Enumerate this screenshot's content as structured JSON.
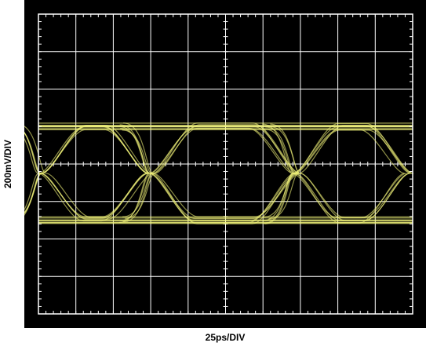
{
  "chart_data": {
    "type": "eye-diagram",
    "xlabel": "25ps/DIV",
    "ylabel": "200mV/DIV",
    "grid": true,
    "grid_divisions": {
      "x": 10,
      "y": 8
    },
    "colors": {
      "background": "#000000",
      "grid": "#ffffff",
      "trace": "#f2f47a"
    },
    "x_divisions_range": [
      0,
      10
    ],
    "y_divisions_range": [
      -4,
      4
    ],
    "signal": {
      "high_level_div": 1.0,
      "low_level_div": -1.5,
      "rail_spread_div": 0.2,
      "crossing_times_div": [
        0.1,
        3.0,
        6.9,
        9.9
      ],
      "eye_opening_div": 0.5
    }
  }
}
